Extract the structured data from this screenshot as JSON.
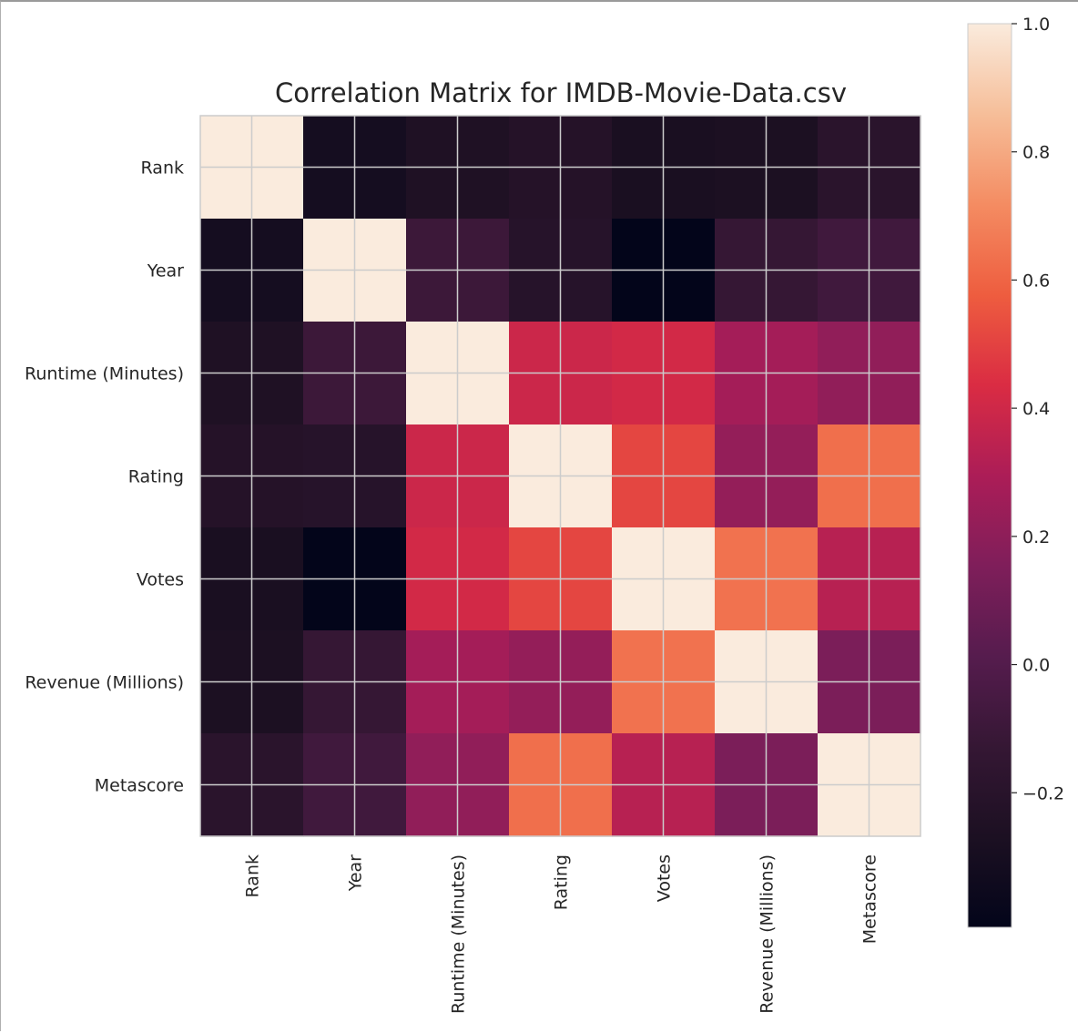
{
  "chart_data": {
    "type": "heatmap",
    "title": "Correlation Matrix for IMDB-Movie-Data.csv",
    "xlabel": "",
    "ylabel": "",
    "categories": [
      "Rank",
      "Year",
      "Runtime (Minutes)",
      "Rating",
      "Votes",
      "Revenue (Millions)",
      "Metascore"
    ],
    "matrix": [
      [
        1.0,
        -0.31,
        -0.25,
        -0.22,
        -0.28,
        -0.27,
        -0.19
      ],
      [
        -0.31,
        1.0,
        -0.1,
        -0.21,
        -0.41,
        -0.13,
        -0.08
      ],
      [
        -0.25,
        -0.1,
        1.0,
        0.39,
        0.41,
        0.27,
        0.21
      ],
      [
        -0.22,
        -0.21,
        0.39,
        1.0,
        0.51,
        0.22,
        0.63
      ],
      [
        -0.28,
        -0.41,
        0.41,
        0.51,
        1.0,
        0.64,
        0.33
      ],
      [
        -0.27,
        -0.13,
        0.27,
        0.22,
        0.64,
        1.0,
        0.14
      ],
      [
        -0.19,
        -0.08,
        0.21,
        0.63,
        0.33,
        0.14,
        1.0
      ]
    ],
    "colorbar": {
      "vmin": -0.41,
      "vmax": 1.0,
      "ticks": [
        1.0,
        0.8,
        0.6,
        0.4,
        0.2,
        0.0,
        -0.2
      ],
      "tick_labels": [
        "1.0",
        "0.8",
        "0.6",
        "0.4",
        "0.2",
        "0.0",
        "−0.2"
      ],
      "colormap": "rocket"
    },
    "grid": true,
    "colors": {
      "grid": "#cccccc",
      "tick_text": "#262626"
    }
  }
}
